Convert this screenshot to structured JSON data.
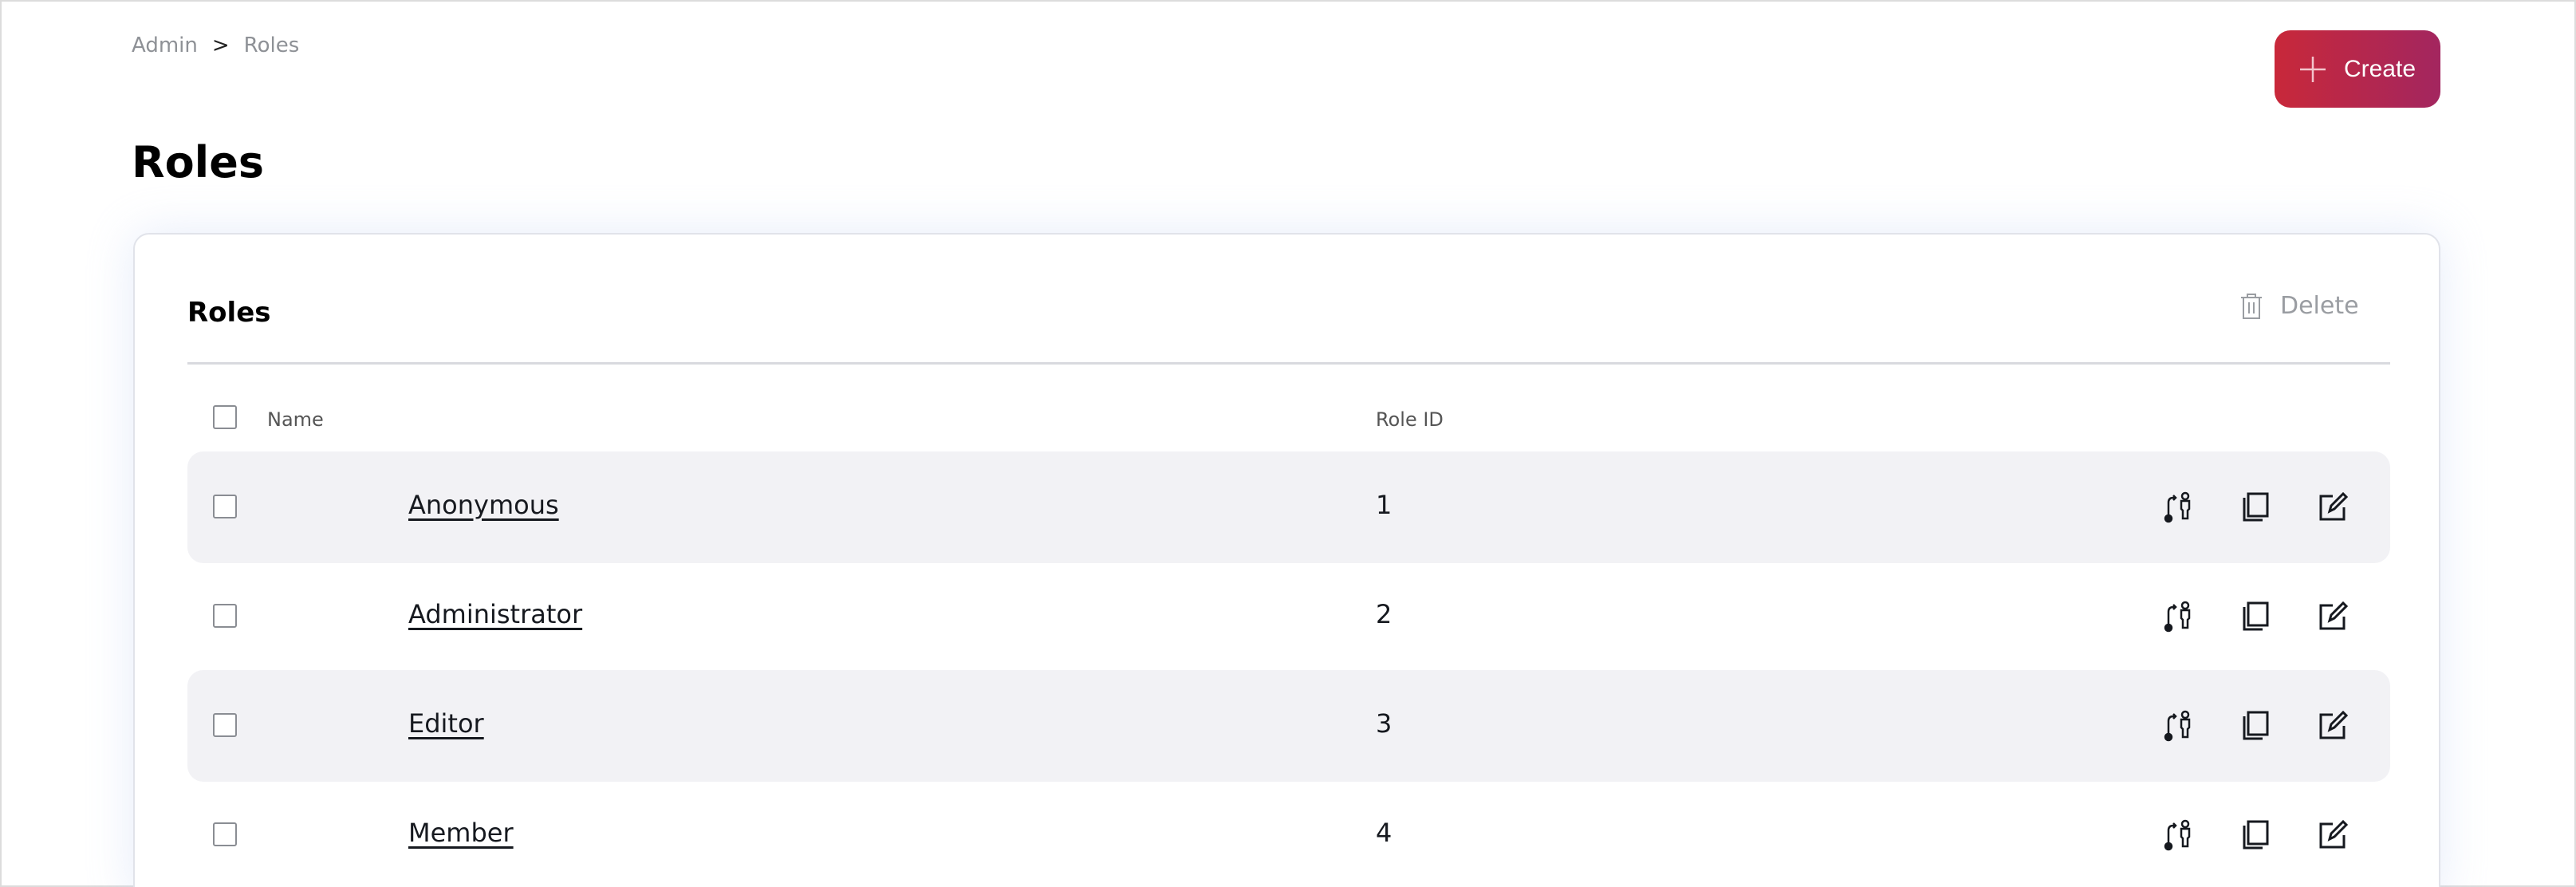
{
  "breadcrumb": {
    "items": [
      "Admin",
      "Roles"
    ],
    "separator": ">"
  },
  "page_title": "Roles",
  "create_button": {
    "label": "Create",
    "icon": "plus-icon",
    "gradient": [
      "#c8283a",
      "#a3265f"
    ]
  },
  "card": {
    "title": "Roles",
    "delete_button": {
      "label": "Delete",
      "icon": "trash-icon"
    },
    "columns": [
      "Name",
      "Role ID"
    ],
    "rows": [
      {
        "name": "Anonymous",
        "role_id": "1"
      },
      {
        "name": "Administrator",
        "role_id": "2"
      },
      {
        "name": "Editor",
        "role_id": "3"
      },
      {
        "name": "Member",
        "role_id": "4"
      }
    ],
    "row_actions": [
      "assign-users-icon",
      "copy-icon",
      "edit-icon"
    ]
  }
}
